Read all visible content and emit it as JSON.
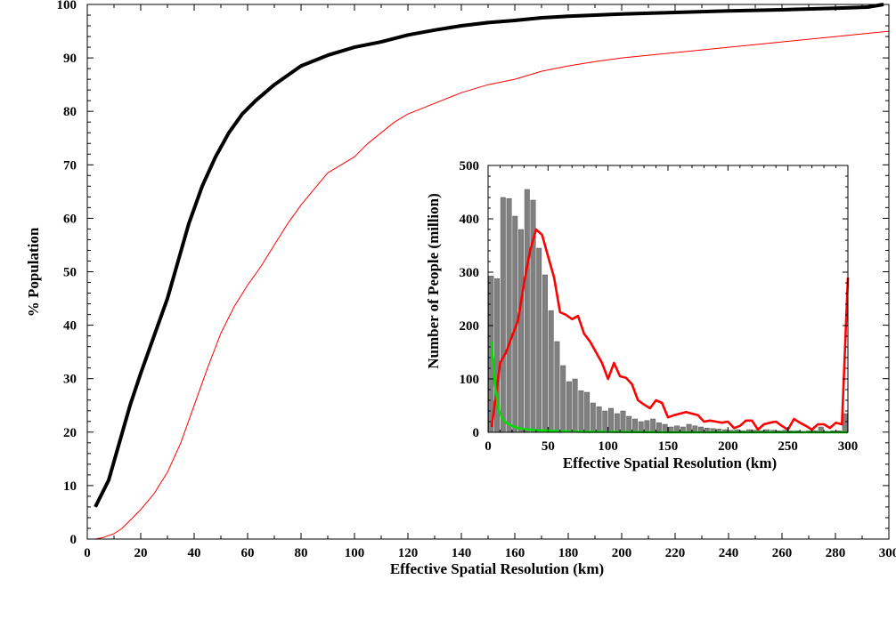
{
  "chart_data": [
    {
      "type": "line",
      "title": "",
      "xlabel": "Effective Spatial Resolution (km)",
      "ylabel": "% Population",
      "xlim": [
        0,
        300
      ],
      "ylim": [
        0,
        100
      ],
      "x_ticks": [
        0,
        20,
        40,
        60,
        80,
        100,
        120,
        140,
        160,
        180,
        200,
        220,
        240,
        260,
        280,
        300
      ],
      "y_ticks": [
        0,
        10,
        20,
        30,
        40,
        50,
        60,
        70,
        80,
        90,
        100
      ],
      "x_tick_labels": [
        "0",
        "20",
        "40",
        "60",
        "80",
        "100",
        "120",
        "140",
        "160",
        "180",
        "200",
        "220",
        "240",
        "260",
        "280",
        "300"
      ],
      "y_tick_labels": [
        "0",
        "10",
        "20",
        "30",
        "40",
        "50",
        "60",
        "70",
        "80",
        "90",
        "100"
      ],
      "series": [
        {
          "name": "black",
          "color": "#000000",
          "points": [
            [
              3,
              6
            ],
            [
              8,
              11
            ],
            [
              12,
              18
            ],
            [
              16,
              25
            ],
            [
              20,
              31
            ],
            [
              25,
              38
            ],
            [
              30,
              45
            ],
            [
              34,
              52
            ],
            [
              38,
              59
            ],
            [
              43,
              66
            ],
            [
              48,
              71.5
            ],
            [
              53,
              76
            ],
            [
              58,
              79.5
            ],
            [
              63,
              82
            ],
            [
              70,
              85
            ],
            [
              80,
              88.5
            ],
            [
              90,
              90.5
            ],
            [
              100,
              92
            ],
            [
              110,
              93
            ],
            [
              120,
              94.3
            ],
            [
              130,
              95.2
            ],
            [
              140,
              96
            ],
            [
              150,
              96.6
            ],
            [
              160,
              97
            ],
            [
              170,
              97.5
            ],
            [
              180,
              97.8
            ],
            [
              200,
              98.2
            ],
            [
              220,
              98.5
            ],
            [
              240,
              98.8
            ],
            [
              260,
              99
            ],
            [
              280,
              99.3
            ],
            [
              292,
              99.5
            ],
            [
              298,
              100
            ]
          ]
        },
        {
          "name": "red",
          "color": "#ff0000",
          "points": [
            [
              3,
              0
            ],
            [
              6,
              0.3
            ],
            [
              10,
              1
            ],
            [
              13,
              2
            ],
            [
              16,
              3.5
            ],
            [
              20,
              5.5
            ],
            [
              25,
              8.5
            ],
            [
              30,
              12.5
            ],
            [
              35,
              18
            ],
            [
              40,
              25
            ],
            [
              45,
              32
            ],
            [
              50,
              38.5
            ],
            [
              55,
              43.5
            ],
            [
              60,
              47.5
            ],
            [
              65,
              51
            ],
            [
              70,
              55
            ],
            [
              75,
              59
            ],
            [
              80,
              62.5
            ],
            [
              85,
              65.5
            ],
            [
              90,
              68.5
            ],
            [
              95,
              70
            ],
            [
              100,
              71.5
            ],
            [
              105,
              74
            ],
            [
              110,
              76
            ],
            [
              115,
              78
            ],
            [
              120,
              79.5
            ],
            [
              125,
              80.5
            ],
            [
              130,
              81.5
            ],
            [
              140,
              83.5
            ],
            [
              150,
              85
            ],
            [
              160,
              86
            ],
            [
              170,
              87.5
            ],
            [
              180,
              88.5
            ],
            [
              190,
              89.3
            ],
            [
              200,
              90
            ],
            [
              220,
              91
            ],
            [
              240,
              92
            ],
            [
              260,
              93
            ],
            [
              280,
              94
            ],
            [
              300,
              95
            ]
          ]
        }
      ]
    },
    {
      "type": "bar",
      "title": "",
      "xlabel": "Effective Spatial Resolution (km)",
      "ylabel": "Number of People (million)",
      "xlim": [
        0,
        300
      ],
      "ylim": [
        0,
        500
      ],
      "x_ticks": [
        0,
        50,
        100,
        150,
        200,
        250,
        300
      ],
      "y_ticks": [
        0,
        100,
        200,
        300,
        400,
        500
      ],
      "x_tick_labels": [
        "0",
        "50",
        "100",
        "150",
        "200",
        "250",
        "300"
      ],
      "y_tick_labels": [
        "0",
        "100",
        "200",
        "300",
        "400",
        "500"
      ],
      "bar_width_km": 4,
      "bars": {
        "x": [
          2.5,
          7.5,
          12.5,
          17.5,
          22.5,
          27.5,
          32.5,
          37.5,
          42.5,
          47.5,
          52.5,
          57.5,
          62.5,
          67.5,
          72.5,
          77.5,
          82.5,
          87.5,
          92.5,
          97.5,
          102.5,
          107.5,
          112.5,
          117.5,
          122.5,
          127.5,
          132.5,
          137.5,
          142.5,
          147.5,
          152.5,
          157.5,
          162.5,
          167.5,
          172.5,
          177.5,
          182.5,
          187.5,
          192.5,
          197.5,
          202.5,
          207.5,
          212.5,
          217.5,
          222.5,
          227.5,
          232.5,
          237.5,
          242.5,
          247.5,
          252.5,
          257.5,
          262.5,
          267.5,
          272.5,
          277.5,
          282.5,
          287.5,
          292.5,
          297.5
        ],
        "values": [
          293,
          288,
          440,
          438,
          405,
          380,
          455,
          435,
          345,
          295,
          228,
          170,
          125,
          95,
          100,
          78,
          75,
          55,
          48,
          40,
          45,
          35,
          40,
          30,
          25,
          20,
          22,
          25,
          18,
          15,
          10,
          12,
          10,
          15,
          12,
          10,
          8,
          7,
          6,
          5,
          4,
          5,
          3,
          5,
          4,
          3,
          5,
          4,
          3,
          4,
          3,
          3,
          2,
          3,
          3,
          10,
          2,
          3,
          3,
          35
        ],
        "color": "#808080"
      },
      "series": [
        {
          "name": "red",
          "color": "#ff0000",
          "points": [
            [
              3,
              10
            ],
            [
              6,
              60
            ],
            [
              10,
              130
            ],
            [
              15,
              150
            ],
            [
              20,
              180
            ],
            [
              25,
              210
            ],
            [
              30,
              280
            ],
            [
              35,
              340
            ],
            [
              40,
              380
            ],
            [
              45,
              370
            ],
            [
              50,
              330
            ],
            [
              55,
              290
            ],
            [
              60,
              225
            ],
            [
              65,
              220
            ],
            [
              70,
              212
            ],
            [
              75,
              218
            ],
            [
              80,
              185
            ],
            [
              85,
              170
            ],
            [
              90,
              150
            ],
            [
              95,
              130
            ],
            [
              100,
              100
            ],
            [
              105,
              130
            ],
            [
              110,
              105
            ],
            [
              115,
              102
            ],
            [
              120,
              90
            ],
            [
              125,
              60
            ],
            [
              130,
              52
            ],
            [
              135,
              45
            ],
            [
              140,
              60
            ],
            [
              145,
              55
            ],
            [
              150,
              28
            ],
            [
              155,
              32
            ],
            [
              160,
              35
            ],
            [
              165,
              38
            ],
            [
              170,
              35
            ],
            [
              175,
              32
            ],
            [
              180,
              20
            ],
            [
              185,
              22
            ],
            [
              190,
              20
            ],
            [
              195,
              18
            ],
            [
              200,
              20
            ],
            [
              205,
              8
            ],
            [
              210,
              12
            ],
            [
              215,
              22
            ],
            [
              220,
              22
            ],
            [
              225,
              5
            ],
            [
              230,
              15
            ],
            [
              235,
              18
            ],
            [
              240,
              20
            ],
            [
              245,
              12
            ],
            [
              250,
              5
            ],
            [
              255,
              25
            ],
            [
              260,
              18
            ],
            [
              265,
              12
            ],
            [
              270,
              5
            ],
            [
              275,
              15
            ],
            [
              280,
              15
            ],
            [
              285,
              8
            ],
            [
              290,
              18
            ],
            [
              295,
              15
            ],
            [
              300,
              290
            ]
          ]
        },
        {
          "name": "green",
          "color": "#00dd00",
          "points": [
            [
              3,
              170
            ],
            [
              6,
              85
            ],
            [
              9,
              40
            ],
            [
              12,
              25
            ],
            [
              15,
              18
            ],
            [
              20,
              12
            ],
            [
              25,
              8
            ],
            [
              30,
              6
            ],
            [
              40,
              4
            ],
            [
              50,
              3
            ],
            [
              60,
              2
            ],
            [
              80,
              1
            ],
            [
              100,
              1
            ],
            [
              150,
              0
            ],
            [
              200,
              0
            ],
            [
              250,
              0
            ],
            [
              300,
              0
            ]
          ]
        }
      ]
    }
  ]
}
